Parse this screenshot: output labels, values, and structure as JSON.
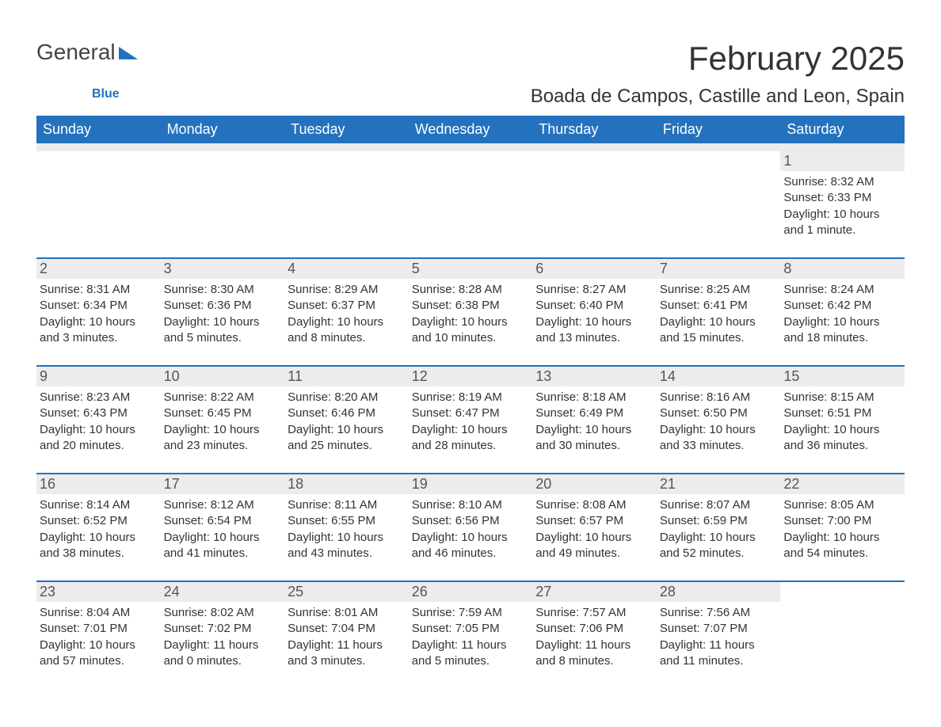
{
  "branding": {
    "logo_text_1": "General",
    "logo_text_2": "Blue",
    "logo_triangle_color": "#2472bd"
  },
  "title": {
    "month_year": "February 2025",
    "location": "Boada de Campos, Castille and Leon, Spain"
  },
  "styling": {
    "header_bg": "#2472bd",
    "header_text_color": "#ffffff",
    "blank_row_bg": "#ececec",
    "day_number_bg": "#ececec",
    "body_text_color": "#333333",
    "title_fontsize": 42,
    "location_fontsize": 24,
    "header_fontsize": 18,
    "daynum_fontsize": 18,
    "info_fontsize": 15
  },
  "day_names": [
    "Sunday",
    "Monday",
    "Tuesday",
    "Wednesday",
    "Thursday",
    "Friday",
    "Saturday"
  ],
  "weeks": [
    {
      "top_border": false,
      "cells": [
        {
          "blank": true
        },
        {
          "blank": true
        },
        {
          "blank": true
        },
        {
          "blank": true
        },
        {
          "blank": true
        },
        {
          "blank": true
        },
        {
          "day": "1",
          "sunrise": "Sunrise: 8:32 AM",
          "sunset": "Sunset: 6:33 PM",
          "daylight1": "Daylight: 10 hours",
          "daylight2": "and 1 minute."
        }
      ]
    },
    {
      "top_border": true,
      "cells": [
        {
          "day": "2",
          "sunrise": "Sunrise: 8:31 AM",
          "sunset": "Sunset: 6:34 PM",
          "daylight1": "Daylight: 10 hours",
          "daylight2": "and 3 minutes."
        },
        {
          "day": "3",
          "sunrise": "Sunrise: 8:30 AM",
          "sunset": "Sunset: 6:36 PM",
          "daylight1": "Daylight: 10 hours",
          "daylight2": "and 5 minutes."
        },
        {
          "day": "4",
          "sunrise": "Sunrise: 8:29 AM",
          "sunset": "Sunset: 6:37 PM",
          "daylight1": "Daylight: 10 hours",
          "daylight2": "and 8 minutes."
        },
        {
          "day": "5",
          "sunrise": "Sunrise: 8:28 AM",
          "sunset": "Sunset: 6:38 PM",
          "daylight1": "Daylight: 10 hours",
          "daylight2": "and 10 minutes."
        },
        {
          "day": "6",
          "sunrise": "Sunrise: 8:27 AM",
          "sunset": "Sunset: 6:40 PM",
          "daylight1": "Daylight: 10 hours",
          "daylight2": "and 13 minutes."
        },
        {
          "day": "7",
          "sunrise": "Sunrise: 8:25 AM",
          "sunset": "Sunset: 6:41 PM",
          "daylight1": "Daylight: 10 hours",
          "daylight2": "and 15 minutes."
        },
        {
          "day": "8",
          "sunrise": "Sunrise: 8:24 AM",
          "sunset": "Sunset: 6:42 PM",
          "daylight1": "Daylight: 10 hours",
          "daylight2": "and 18 minutes."
        }
      ]
    },
    {
      "top_border": true,
      "cells": [
        {
          "day": "9",
          "sunrise": "Sunrise: 8:23 AM",
          "sunset": "Sunset: 6:43 PM",
          "daylight1": "Daylight: 10 hours",
          "daylight2": "and 20 minutes."
        },
        {
          "day": "10",
          "sunrise": "Sunrise: 8:22 AM",
          "sunset": "Sunset: 6:45 PM",
          "daylight1": "Daylight: 10 hours",
          "daylight2": "and 23 minutes."
        },
        {
          "day": "11",
          "sunrise": "Sunrise: 8:20 AM",
          "sunset": "Sunset: 6:46 PM",
          "daylight1": "Daylight: 10 hours",
          "daylight2": "and 25 minutes."
        },
        {
          "day": "12",
          "sunrise": "Sunrise: 8:19 AM",
          "sunset": "Sunset: 6:47 PM",
          "daylight1": "Daylight: 10 hours",
          "daylight2": "and 28 minutes."
        },
        {
          "day": "13",
          "sunrise": "Sunrise: 8:18 AM",
          "sunset": "Sunset: 6:49 PM",
          "daylight1": "Daylight: 10 hours",
          "daylight2": "and 30 minutes."
        },
        {
          "day": "14",
          "sunrise": "Sunrise: 8:16 AM",
          "sunset": "Sunset: 6:50 PM",
          "daylight1": "Daylight: 10 hours",
          "daylight2": "and 33 minutes."
        },
        {
          "day": "15",
          "sunrise": "Sunrise: 8:15 AM",
          "sunset": "Sunset: 6:51 PM",
          "daylight1": "Daylight: 10 hours",
          "daylight2": "and 36 minutes."
        }
      ]
    },
    {
      "top_border": true,
      "cells": [
        {
          "day": "16",
          "sunrise": "Sunrise: 8:14 AM",
          "sunset": "Sunset: 6:52 PM",
          "daylight1": "Daylight: 10 hours",
          "daylight2": "and 38 minutes."
        },
        {
          "day": "17",
          "sunrise": "Sunrise: 8:12 AM",
          "sunset": "Sunset: 6:54 PM",
          "daylight1": "Daylight: 10 hours",
          "daylight2": "and 41 minutes."
        },
        {
          "day": "18",
          "sunrise": "Sunrise: 8:11 AM",
          "sunset": "Sunset: 6:55 PM",
          "daylight1": "Daylight: 10 hours",
          "daylight2": "and 43 minutes."
        },
        {
          "day": "19",
          "sunrise": "Sunrise: 8:10 AM",
          "sunset": "Sunset: 6:56 PM",
          "daylight1": "Daylight: 10 hours",
          "daylight2": "and 46 minutes."
        },
        {
          "day": "20",
          "sunrise": "Sunrise: 8:08 AM",
          "sunset": "Sunset: 6:57 PM",
          "daylight1": "Daylight: 10 hours",
          "daylight2": "and 49 minutes."
        },
        {
          "day": "21",
          "sunrise": "Sunrise: 8:07 AM",
          "sunset": "Sunset: 6:59 PM",
          "daylight1": "Daylight: 10 hours",
          "daylight2": "and 52 minutes."
        },
        {
          "day": "22",
          "sunrise": "Sunrise: 8:05 AM",
          "sunset": "Sunset: 7:00 PM",
          "daylight1": "Daylight: 10 hours",
          "daylight2": "and 54 minutes."
        }
      ]
    },
    {
      "top_border": true,
      "cells": [
        {
          "day": "23",
          "sunrise": "Sunrise: 8:04 AM",
          "sunset": "Sunset: 7:01 PM",
          "daylight1": "Daylight: 10 hours",
          "daylight2": "and 57 minutes."
        },
        {
          "day": "24",
          "sunrise": "Sunrise: 8:02 AM",
          "sunset": "Sunset: 7:02 PM",
          "daylight1": "Daylight: 11 hours",
          "daylight2": "and 0 minutes."
        },
        {
          "day": "25",
          "sunrise": "Sunrise: 8:01 AM",
          "sunset": "Sunset: 7:04 PM",
          "daylight1": "Daylight: 11 hours",
          "daylight2": "and 3 minutes."
        },
        {
          "day": "26",
          "sunrise": "Sunrise: 7:59 AM",
          "sunset": "Sunset: 7:05 PM",
          "daylight1": "Daylight: 11 hours",
          "daylight2": "and 5 minutes."
        },
        {
          "day": "27",
          "sunrise": "Sunrise: 7:57 AM",
          "sunset": "Sunset: 7:06 PM",
          "daylight1": "Daylight: 11 hours",
          "daylight2": "and 8 minutes."
        },
        {
          "day": "28",
          "sunrise": "Sunrise: 7:56 AM",
          "sunset": "Sunset: 7:07 PM",
          "daylight1": "Daylight: 11 hours",
          "daylight2": "and 11 minutes."
        },
        {
          "blank": true
        }
      ]
    }
  ]
}
